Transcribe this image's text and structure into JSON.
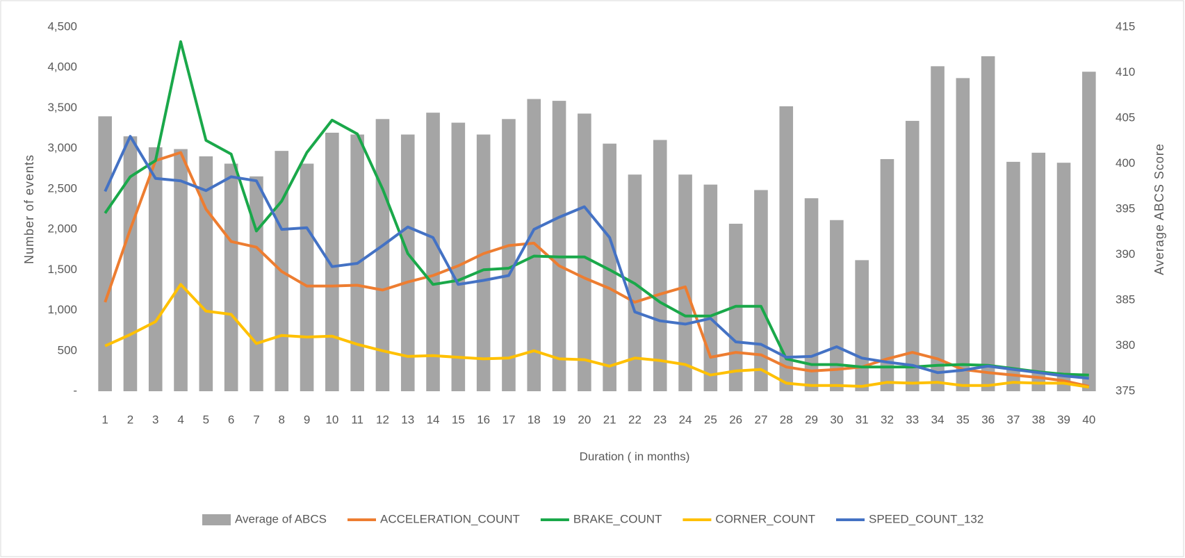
{
  "chart_data": {
    "type": "combo",
    "x_label": "Duration ( in months)",
    "y_label": "Number  of  events",
    "y2_label": "Average ABCS Score",
    "categories": [
      1,
      2,
      3,
      4,
      5,
      6,
      7,
      8,
      9,
      10,
      11,
      12,
      13,
      14,
      15,
      16,
      17,
      18,
      19,
      20,
      21,
      22,
      23,
      24,
      25,
      26,
      27,
      28,
      29,
      30,
      31,
      32,
      33,
      34,
      35,
      36,
      37,
      38,
      39,
      40
    ],
    "ylim": [
      0,
      4500
    ],
    "yticks": [
      {
        "value": 0,
        "label": "-"
      },
      500,
      {
        "value": 1000,
        "label": "1,000"
      },
      {
        "value": 1500,
        "label": "1,500"
      },
      {
        "value": 2000,
        "label": "2,000"
      },
      {
        "value": 2500,
        "label": "2,500"
      },
      {
        "value": 3000,
        "label": "3,000"
      },
      {
        "value": 3500,
        "label": "3,500"
      },
      {
        "value": 4000,
        "label": "4,000"
      },
      {
        "value": 4500,
        "label": "4,500"
      }
    ],
    "y2lim": [
      375,
      415
    ],
    "y2ticks": [
      375,
      380,
      385,
      390,
      395,
      400,
      405,
      410,
      415
    ],
    "legend": "bottom",
    "series": [
      {
        "name": "Average of ABCS",
        "type": "bar",
        "axis": "y2",
        "color": "#a5a5a5",
        "values": [
          405.2,
          403.0,
          401.8,
          401.6,
          400.8,
          400.0,
          398.6,
          401.4,
          400.0,
          403.4,
          403.2,
          404.9,
          403.2,
          405.6,
          404.5,
          403.2,
          404.9,
          407.1,
          406.9,
          405.5,
          402.2,
          398.8,
          402.6,
          398.8,
          397.7,
          393.4,
          397.1,
          406.3,
          396.2,
          393.8,
          389.4,
          400.5,
          404.7,
          410.7,
          409.4,
          411.8,
          400.2,
          401.2,
          400.1,
          410.1
        ]
      },
      {
        "name": "ACCELERATION_COUNT",
        "type": "line",
        "color": "#ed7d31",
        "values": [
          1100,
          2000,
          2850,
          2950,
          2250,
          1850,
          1780,
          1480,
          1300,
          1300,
          1310,
          1250,
          1350,
          1430,
          1550,
          1700,
          1800,
          1830,
          1550,
          1400,
          1270,
          1100,
          1200,
          1290,
          420,
          480,
          450,
          300,
          250,
          270,
          300,
          400,
          480,
          400,
          270,
          230,
          200,
          170,
          130,
          60
        ]
      },
      {
        "name": "BRAKE_COUNT",
        "type": "line",
        "color": "#1aa84a",
        "values": [
          2200,
          2650,
          2850,
          4320,
          3100,
          2930,
          1980,
          2350,
          2950,
          3350,
          3180,
          2500,
          1700,
          1320,
          1370,
          1500,
          1520,
          1670,
          1660,
          1660,
          1500,
          1330,
          1100,
          930,
          930,
          1050,
          1050,
          400,
          330,
          330,
          300,
          300,
          300,
          320,
          330,
          320,
          280,
          240,
          210,
          200
        ]
      },
      {
        "name": "CORNER_COUNT",
        "type": "line",
        "color": "#ffc000",
        "values": [
          560,
          700,
          860,
          1320,
          990,
          950,
          590,
          690,
          670,
          680,
          580,
          500,
          430,
          440,
          420,
          400,
          410,
          500,
          400,
          390,
          310,
          410,
          380,
          330,
          200,
          250,
          270,
          100,
          70,
          70,
          60,
          110,
          100,
          110,
          70,
          70,
          110,
          100,
          100,
          50
        ]
      },
      {
        "name": "SPEED_COUNT_132",
        "type": "line",
        "color": "#4472c4",
        "values": [
          2470,
          3150,
          2630,
          2600,
          2480,
          2650,
          2600,
          2000,
          2020,
          1540,
          1580,
          1800,
          2030,
          1900,
          1320,
          1370,
          1430,
          2000,
          2150,
          2280,
          1900,
          980,
          870,
          830,
          900,
          610,
          580,
          420,
          430,
          550,
          410,
          360,
          320,
          230,
          260,
          310,
          270,
          230,
          190,
          160
        ]
      }
    ]
  }
}
